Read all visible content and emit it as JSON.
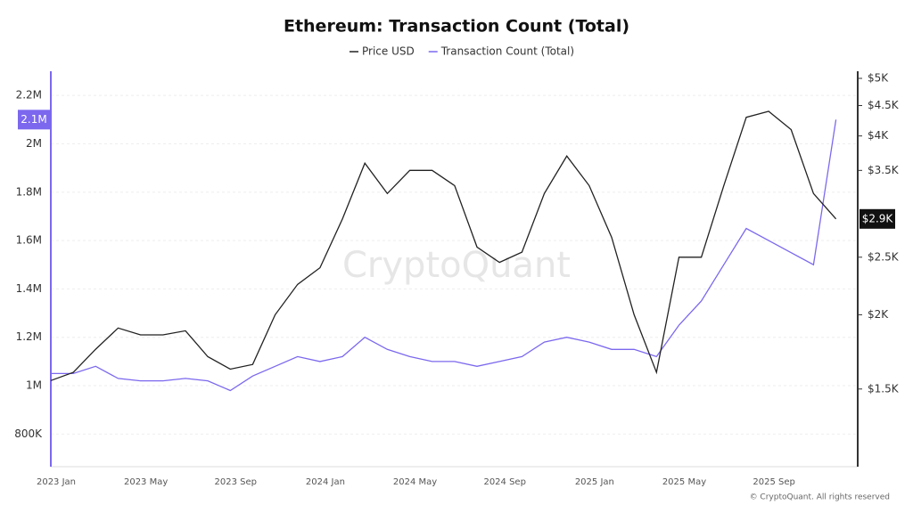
{
  "chart_data": {
    "type": "line",
    "title": "Ethereum: Transaction Count (Total)",
    "watermark": "CryptoQuant",
    "footer": "© CryptoQuant. All rights reserved",
    "x": [
      "2023 Jan",
      null,
      null,
      null,
      "2023 May",
      null,
      null,
      null,
      "2023 Sep",
      null,
      null,
      null,
      "2024 Jan",
      null,
      null,
      null,
      "2024 May",
      null,
      null,
      null,
      "2024 Sep",
      null,
      null,
      null,
      "2025 Jan",
      null,
      null,
      null,
      "2025 May",
      null,
      null,
      null,
      "2025 Sep",
      null,
      null,
      null
    ],
    "ylim": [
      665000,
      2300000
    ],
    "yticks": [
      {
        "value": 800000,
        "label": "800K"
      },
      {
        "value": 1000000,
        "label": "1M"
      },
      {
        "value": 1200000,
        "label": "1.2M"
      },
      {
        "value": 1400000,
        "label": "1.4M"
      },
      {
        "value": 1600000,
        "label": "1.6M"
      },
      {
        "value": 1800000,
        "label": "1.8M"
      },
      {
        "value": 2000000,
        "label": "2M"
      },
      {
        "value": 2200000,
        "label": "2.2M"
      }
    ],
    "y2lim": [
      1110,
      5140
    ],
    "y2log": true,
    "y2ticks": [
      {
        "value": 1500,
        "label": "$1.5K"
      },
      {
        "value": 2000,
        "label": "$2K"
      },
      {
        "value": 2500,
        "label": "$2.5K"
      },
      {
        "value": 3500,
        "label": "$3.5K"
      },
      {
        "value": 4000,
        "label": "$4K"
      },
      {
        "value": 4500,
        "label": "$4.5K"
      },
      {
        "value": 5000,
        "label": "$5K"
      }
    ],
    "grid": true,
    "series": [
      {
        "name": "Price USD",
        "color": "#222222",
        "axis": "y2",
        "last_label": "$2.9K",
        "values": [
          1550,
          1600,
          1750,
          1900,
          1850,
          1850,
          1880,
          1700,
          1620,
          1650,
          2000,
          2250,
          2400,
          2900,
          3600,
          3200,
          3500,
          3500,
          3300,
          2600,
          2450,
          2550,
          3200,
          3700,
          3300,
          2700,
          2000,
          1600,
          2500,
          2500,
          3300,
          4300,
          4400,
          4100,
          3200,
          2900
        ]
      },
      {
        "name": "Transaction Count (Total)",
        "color": "#7b68ee",
        "axis": "y",
        "last_label": "2.1M",
        "values": [
          1050000,
          1050000,
          1080000,
          1030000,
          1020000,
          1020000,
          1030000,
          1020000,
          980000,
          1040000,
          1080000,
          1120000,
          1100000,
          1120000,
          1200000,
          1150000,
          1120000,
          1100000,
          1100000,
          1080000,
          1100000,
          1120000,
          1180000,
          1200000,
          1180000,
          1150000,
          1150000,
          1120000,
          1250000,
          1350000,
          1500000,
          1650000,
          1600000,
          1550000,
          1500000,
          2100000
        ]
      }
    ]
  }
}
